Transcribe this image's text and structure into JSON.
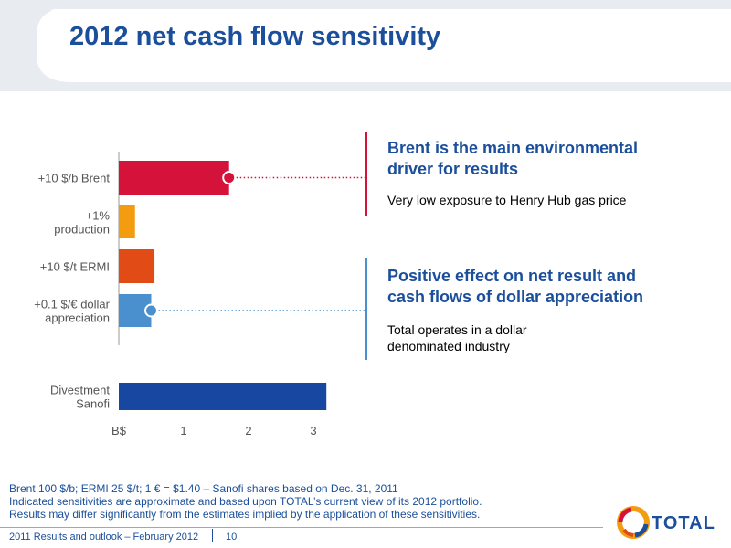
{
  "page": {
    "title": "2012 net cash flow sensitivity"
  },
  "chart_data": {
    "type": "bar",
    "orientation": "horizontal",
    "unit": "B$",
    "categories": [
      "+10 $/b Brent",
      "+1% production",
      "+10 $/t ERMI",
      "+0.1 $/€ dollar appreciation",
      "Divestment Sanofi"
    ],
    "category_lines": [
      [
        "+10 $/b Brent"
      ],
      [
        "+1%",
        "production"
      ],
      [
        "+10 $/t ERMI"
      ],
      [
        "+0.1 $/€ dollar",
        "appreciation"
      ],
      [
        "Divestment",
        "Sanofi"
      ]
    ],
    "values": [
      1.7,
      0.25,
      0.55,
      0.5,
      3.2
    ],
    "colors": [
      "#d4123a",
      "#f39c0f",
      "#e04b16",
      "#4a90cf",
      "#1747a0"
    ],
    "xlim": [
      0,
      3.3
    ],
    "xticks": [
      0,
      1,
      2,
      3
    ],
    "xtick_labels": [
      "B$",
      "1",
      "2",
      "3"
    ],
    "highlight_colors": {
      "brent": "#d4123a",
      "dollar": "#4a90cf"
    }
  },
  "messages": [
    {
      "title_lines": [
        "Brent is the main environmental",
        "driver for results"
      ],
      "body_lines": [
        "Very low exposure to Henry Hub gas price"
      ]
    },
    {
      "title_lines": [
        "Positive effect on net result and",
        "cash flows of dollar appreciation"
      ],
      "body_lines": [
        "Total operates in a dollar",
        "denominated industry"
      ]
    }
  ],
  "footnotes": [
    "Brent 100 $/b; ERMI 25 $/t; 1 € = $1.40 – Sanofi shares based on Dec. 31, 2011",
    "Indicated sensitivities are approximate and based upon TOTAL’s current view of its 2012 portfolio.",
    "Results may differ significantly from the estimates implied by the application of these sensitivities."
  ],
  "footer": {
    "left": "2011 Results and outlook – February 2012",
    "page": "10"
  },
  "logo": {
    "text": "TOTAL"
  }
}
